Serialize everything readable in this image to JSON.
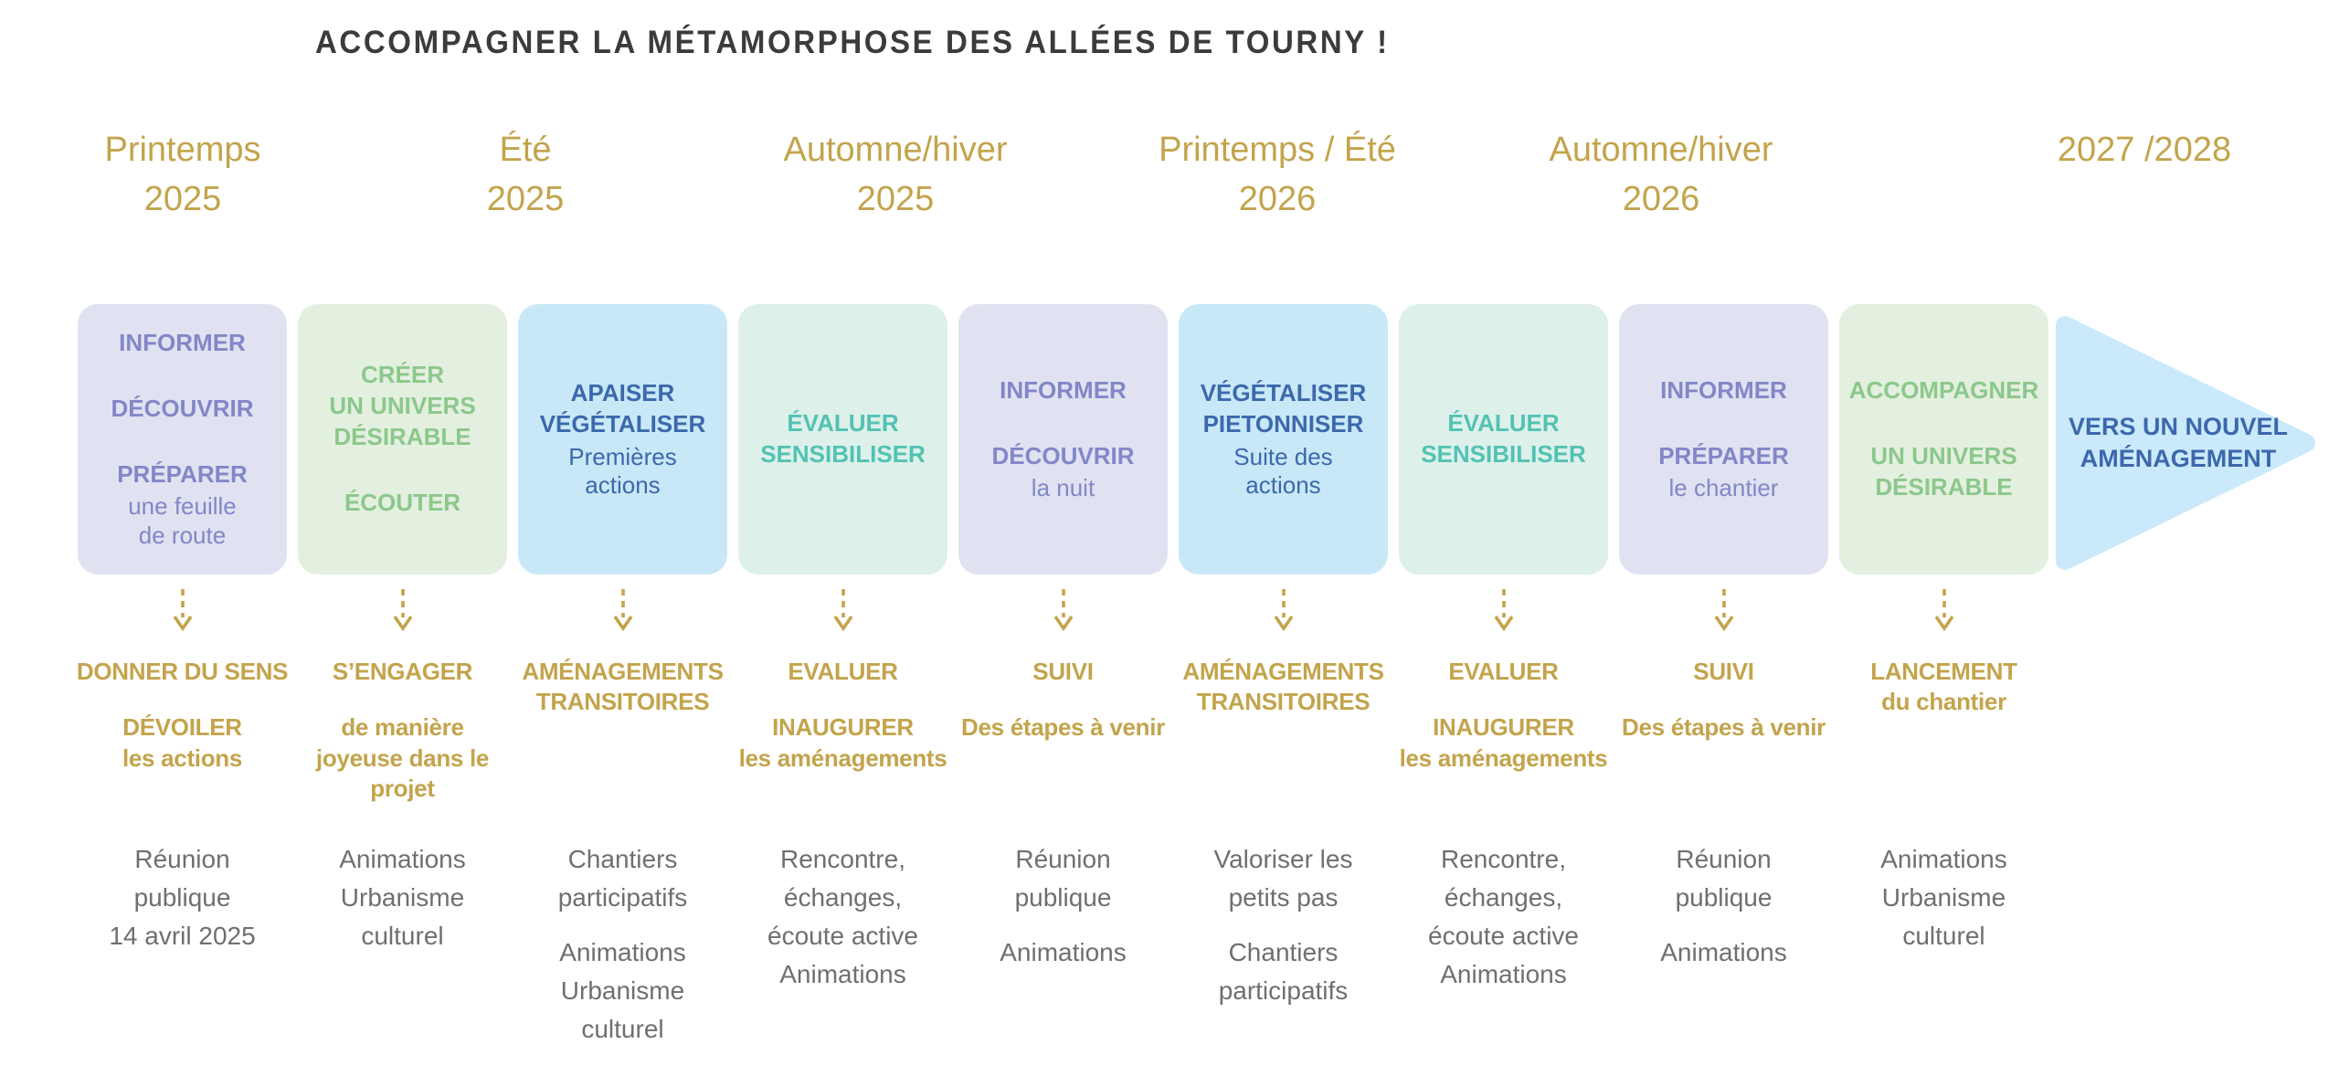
{
  "title": "ACCOMPAGNER LA MÉTAMORPHOSE DES ALLÉES DE TOURNY !",
  "colors": {
    "gold": "#C3A44C",
    "gray": "#6F6F6F",
    "title": "#3B3B3B",
    "arrow_bg": "#CAE9FA",
    "arrow_fg": "#3C68AC"
  },
  "themes": {
    "lavender": {
      "bg": "#E1E2F1",
      "fg": "#8187C8"
    },
    "green": {
      "bg": "#E3EFDF",
      "fg": "#8BC88B"
    },
    "blue": {
      "bg": "#C8E8F7",
      "fg": "#3C68AC"
    },
    "teal": {
      "bg": "#DDF0EA",
      "fg": "#52C2B3"
    }
  },
  "periods": [
    {
      "label": "Printemps\n2025"
    },
    {
      "label": "Été\n2025"
    },
    {
      "label": "Automne/hiver\n2025"
    },
    {
      "label": "Printemps / Été\n2026"
    },
    {
      "label": "Automne/hiver\n2026"
    },
    {
      "label": "2027 /2028"
    }
  ],
  "columns": [
    {
      "theme": "lavender",
      "box": [
        {
          "b": "INFORMER"
        },
        {
          "b": "DÉCOUVRIR"
        },
        {
          "b": "PRÉPARER",
          "n": "une feuille\nde route"
        }
      ],
      "gold": [
        {
          "h": "DONNER DU SENS"
        },
        {
          "h": "DÉVOILER",
          "s": "les actions"
        }
      ],
      "gray": [
        "Réunion\npublique\n14 avril 2025"
      ]
    },
    {
      "theme": "green",
      "box": [
        {
          "b": "CRÉER\nUN UNIVERS\nDÉSIRABLE"
        },
        {
          "b": "ÉCOUTER"
        }
      ],
      "gold": [
        {
          "h": "S’ENGAGER"
        },
        {
          "s": "de manière\njoyeuse dans le\nprojet"
        }
      ],
      "gray": [
        "Animations\nUrbanisme\nculturel"
      ]
    },
    {
      "theme": "blue",
      "box": [
        {
          "b": "APAISER\nVÉGÉTALISER",
          "n": "Premières\nactions"
        }
      ],
      "gold": [
        {
          "h": "AMÉNAGEMENTS\nTRANSITOIRES"
        }
      ],
      "gray": [
        "Chantiers\nparticipatifs",
        "Animations\nUrbanisme\nculturel"
      ]
    },
    {
      "theme": "teal",
      "box": [
        {
          "b": "ÉVALUER\nSENSIBILISER"
        }
      ],
      "gold": [
        {
          "h": "EVALUER"
        },
        {
          "h": "INAUGURER",
          "s": "les aménagements"
        }
      ],
      "gray": [
        "Rencontre,\néchanges,\nécoute active\nAnimations"
      ]
    },
    {
      "theme": "lavender",
      "box": [
        {
          "b": "INFORMER"
        },
        {
          "b": "DÉCOUVRIR",
          "n": "la nuit"
        }
      ],
      "gold": [
        {
          "h": "SUIVI"
        },
        {
          "s": "Des étapes à venir"
        }
      ],
      "gray": [
        "Réunion\npublique",
        "Animations"
      ]
    },
    {
      "theme": "blue",
      "box": [
        {
          "b": "VÉGÉTALISER\nPIETONNISER",
          "n": "Suite des\nactions"
        }
      ],
      "gold": [
        {
          "h": "AMÉNAGEMENTS\nTRANSITOIRES"
        }
      ],
      "gray": [
        "Valoriser les\npetits pas",
        "Chantiers\nparticipatifs"
      ]
    },
    {
      "theme": "teal",
      "box": [
        {
          "b": "ÉVALUER\nSENSIBILISER"
        }
      ],
      "gold": [
        {
          "h": "EVALUER"
        },
        {
          "h": "INAUGURER",
          "s": "les aménagements"
        }
      ],
      "gray": [
        "Rencontre,\néchanges,\nécoute active\nAnimations"
      ]
    },
    {
      "theme": "lavender",
      "box": [
        {
          "b": "INFORMER"
        },
        {
          "b": "PRÉPARER",
          "n": "le chantier"
        }
      ],
      "gold": [
        {
          "h": "SUIVI"
        },
        {
          "s": "Des étapes à venir"
        }
      ],
      "gray": [
        "Réunion\npublique",
        "Animations"
      ]
    },
    {
      "theme": "green",
      "box": [
        {
          "b": "ACCOMPAGNER"
        },
        {
          "b": "UN UNIVERS\nDÉSIRABLE"
        }
      ],
      "gold": [
        {
          "h": "LANCEMENT",
          "s": "du chantier"
        }
      ],
      "gray": [
        "Animations\nUrbanisme\nculturel"
      ]
    }
  ],
  "arrow": {
    "label": "VERS UN NOUVEL\nAMÉNAGEMENT"
  }
}
